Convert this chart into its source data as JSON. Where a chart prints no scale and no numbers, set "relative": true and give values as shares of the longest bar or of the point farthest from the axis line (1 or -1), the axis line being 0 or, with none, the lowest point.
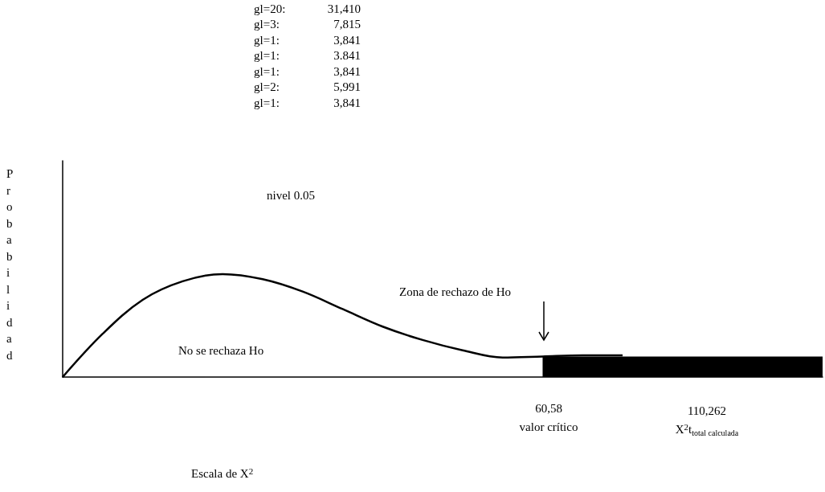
{
  "chart_data": {
    "type": "line",
    "relative": true,
    "ylabel": "Probabilidad",
    "categories": [
      null,
      null,
      null,
      null,
      null,
      null,
      null,
      null,
      null,
      null,
      null,
      null,
      null,
      null,
      null,
      null,
      null,
      null,
      null,
      null
    ],
    "series": [
      {
        "color": "#000000",
        "values": [
          0,
          0.42,
          0.75,
          0.93,
          1,
          0.95,
          0.83,
          0.66,
          0.49,
          0.36,
          0.26,
          0.19,
          0.2,
          0.21,
          0.21,
          null,
          null,
          null,
          null,
          null
        ]
      },
      {
        "type": "area",
        "color": "#000000",
        "values": [
          null,
          null,
          null,
          null,
          null,
          null,
          null,
          null,
          null,
          null,
          null,
          null,
          0.2,
          0.2,
          0.2,
          0.2,
          0.2,
          0.2,
          0.2,
          0.2
        ]
      }
    ],
    "marker": "none",
    "grid": false,
    "annotations": [
      "gl=20: 31,410",
      "gl=3: 7,815",
      "gl=1: 3,841",
      "gl=1: 3.841",
      "gl=1: 3,841",
      "gl=2: 5,991",
      "gl=1: 3,841",
      "nivel 0.05",
      "Zona de rechazo de Ho",
      "No se rechaza Ho",
      "60,58",
      "valor crítico",
      "110,262",
      "X$^{2}$t$_{total calculada}$",
      "Escala de X$^{2}$"
    ]
  }
}
